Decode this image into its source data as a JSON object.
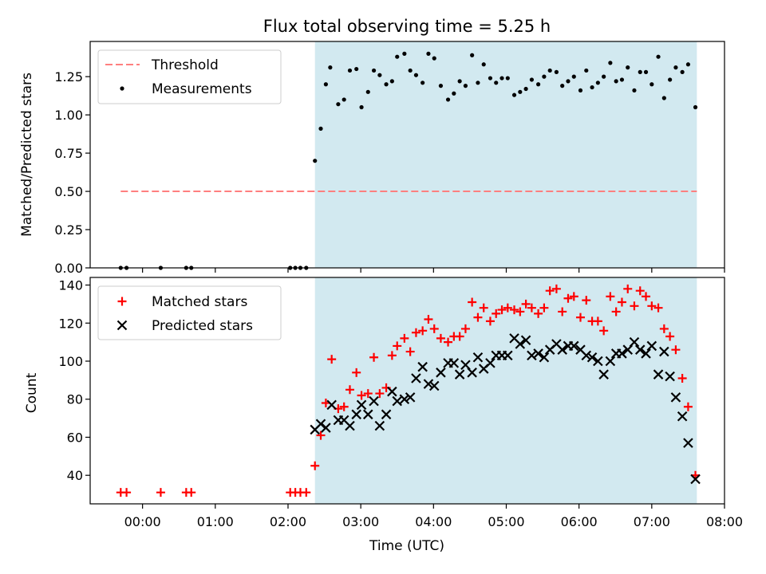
{
  "chart_data": [
    {
      "type": "scatter",
      "title": "Flux total observing time = 5.25 h",
      "xlabel": "",
      "ylabel": "Matched/Predicted stars",
      "xlim": [
        -0.72,
        8.0
      ],
      "ylim": [
        0.0,
        1.48
      ],
      "ytick_values": [
        0.0,
        0.25,
        0.5,
        0.75,
        1.0,
        1.25
      ],
      "ytick_labels": [
        "0.00",
        "0.25",
        "0.50",
        "0.75",
        "1.00",
        "1.25"
      ],
      "shaded_region": [
        2.37,
        7.62
      ],
      "shade_color": "#d2e9f0",
      "legend_position": "top-left",
      "threshold": {
        "name": "Threshold",
        "value": 0.5,
        "x": [
          -0.3,
          7.62
        ],
        "color": "#ff7f7f"
      },
      "series": [
        {
          "name": "Measurements",
          "marker": "dot",
          "color": "#000000",
          "points": [
            [
              -0.3,
              0.0
            ],
            [
              -0.22,
              0.0
            ],
            [
              0.25,
              0.0
            ],
            [
              0.6,
              0.0
            ],
            [
              0.67,
              0.0
            ],
            [
              2.03,
              0.0
            ],
            [
              2.1,
              0.0
            ],
            [
              2.17,
              0.0
            ],
            [
              2.25,
              0.0
            ],
            [
              2.37,
              0.7
            ],
            [
              2.45,
              0.91
            ],
            [
              2.52,
              1.2
            ],
            [
              2.58,
              1.31
            ],
            [
              2.69,
              1.07
            ],
            [
              2.77,
              1.1
            ],
            [
              2.85,
              1.29
            ],
            [
              2.94,
              1.3
            ],
            [
              3.01,
              1.05
            ],
            [
              3.1,
              1.15
            ],
            [
              3.18,
              1.29
            ],
            [
              3.26,
              1.26
            ],
            [
              3.35,
              1.2
            ],
            [
              3.43,
              1.22
            ],
            [
              3.5,
              1.38
            ],
            [
              3.6,
              1.4
            ],
            [
              3.68,
              1.29
            ],
            [
              3.76,
              1.26
            ],
            [
              3.85,
              1.21
            ],
            [
              3.93,
              1.4
            ],
            [
              4.01,
              1.37
            ],
            [
              4.1,
              1.19
            ],
            [
              4.2,
              1.1
            ],
            [
              4.28,
              1.14
            ],
            [
              4.36,
              1.22
            ],
            [
              4.44,
              1.19
            ],
            [
              4.53,
              1.39
            ],
            [
              4.61,
              1.21
            ],
            [
              4.69,
              1.33
            ],
            [
              4.78,
              1.24
            ],
            [
              4.86,
              1.21
            ],
            [
              4.94,
              1.24
            ],
            [
              5.02,
              1.24
            ],
            [
              5.11,
              1.13
            ],
            [
              5.19,
              1.15
            ],
            [
              5.27,
              1.17
            ],
            [
              5.35,
              1.23
            ],
            [
              5.44,
              1.2
            ],
            [
              5.52,
              1.25
            ],
            [
              5.6,
              1.29
            ],
            [
              5.69,
              1.28
            ],
            [
              5.77,
              1.19
            ],
            [
              5.85,
              1.22
            ],
            [
              5.93,
              1.25
            ],
            [
              6.02,
              1.16
            ],
            [
              6.1,
              1.29
            ],
            [
              6.18,
              1.18
            ],
            [
              6.26,
              1.21
            ],
            [
              6.34,
              1.25
            ],
            [
              6.43,
              1.34
            ],
            [
              6.51,
              1.22
            ],
            [
              6.59,
              1.23
            ],
            [
              6.67,
              1.31
            ],
            [
              6.76,
              1.16
            ],
            [
              6.84,
              1.28
            ],
            [
              6.92,
              1.28
            ],
            [
              7.0,
              1.2
            ],
            [
              7.09,
              1.38
            ],
            [
              7.17,
              1.11
            ],
            [
              7.25,
              1.23
            ],
            [
              7.33,
              1.31
            ],
            [
              7.42,
              1.28
            ],
            [
              7.5,
              1.33
            ],
            [
              7.6,
              1.05
            ]
          ]
        }
      ]
    },
    {
      "type": "scatter",
      "title": "",
      "xlabel": "Time (UTC)",
      "ylabel": "Count",
      "xlim": [
        -0.72,
        8.0
      ],
      "ylim": [
        25,
        144
      ],
      "ytick_values": [
        40,
        60,
        80,
        100,
        120,
        140
      ],
      "ytick_labels": [
        "40",
        "60",
        "80",
        "100",
        "120",
        "140"
      ],
      "xtick_values": [
        0,
        1,
        2,
        3,
        4,
        5,
        6,
        7,
        8
      ],
      "xtick_labels": [
        "00:00",
        "01:00",
        "02:00",
        "03:00",
        "04:00",
        "05:00",
        "06:00",
        "07:00",
        "08:00"
      ],
      "shaded_region": [
        2.37,
        7.62
      ],
      "shade_color": "#d2e9f0",
      "legend_position": "top-left",
      "series": [
        {
          "name": "Matched stars",
          "marker": "plus",
          "color": "#ff0000",
          "points": [
            [
              -0.3,
              31
            ],
            [
              -0.22,
              31
            ],
            [
              0.25,
              31
            ],
            [
              0.6,
              31
            ],
            [
              0.67,
              31
            ],
            [
              2.03,
              31
            ],
            [
              2.1,
              31
            ],
            [
              2.17,
              31
            ],
            [
              2.25,
              31
            ],
            [
              2.37,
              45
            ],
            [
              2.45,
              61
            ],
            [
              2.52,
              78
            ],
            [
              2.6,
              101
            ],
            [
              2.69,
              75
            ],
            [
              2.77,
              76
            ],
            [
              2.85,
              85
            ],
            [
              2.94,
              94
            ],
            [
              3.01,
              82
            ],
            [
              3.1,
              83
            ],
            [
              3.18,
              102
            ],
            [
              3.26,
              83
            ],
            [
              3.35,
              86
            ],
            [
              3.43,
              103
            ],
            [
              3.5,
              108
            ],
            [
              3.6,
              112
            ],
            [
              3.68,
              105
            ],
            [
              3.76,
              115
            ],
            [
              3.85,
              116
            ],
            [
              3.93,
              122
            ],
            [
              4.01,
              117
            ],
            [
              4.1,
              112
            ],
            [
              4.2,
              110
            ],
            [
              4.28,
              113
            ],
            [
              4.36,
              113
            ],
            [
              4.44,
              117
            ],
            [
              4.53,
              131
            ],
            [
              4.61,
              123
            ],
            [
              4.69,
              128
            ],
            [
              4.78,
              121
            ],
            [
              4.86,
              125
            ],
            [
              4.94,
              127
            ],
            [
              5.02,
              128
            ],
            [
              5.11,
              127
            ],
            [
              5.19,
              126
            ],
            [
              5.27,
              130
            ],
            [
              5.35,
              128
            ],
            [
              5.44,
              125
            ],
            [
              5.52,
              128
            ],
            [
              5.6,
              137
            ],
            [
              5.69,
              138
            ],
            [
              5.77,
              126
            ],
            [
              5.85,
              133
            ],
            [
              5.93,
              134
            ],
            [
              6.02,
              123
            ],
            [
              6.1,
              132
            ],
            [
              6.18,
              121
            ],
            [
              6.26,
              121
            ],
            [
              6.34,
              116
            ],
            [
              6.43,
              134
            ],
            [
              6.51,
              126
            ],
            [
              6.59,
              131
            ],
            [
              6.67,
              138
            ],
            [
              6.76,
              129
            ],
            [
              6.84,
              137
            ],
            [
              6.92,
              134
            ],
            [
              7.0,
              129
            ],
            [
              7.09,
              128
            ],
            [
              7.17,
              117
            ],
            [
              7.25,
              113
            ],
            [
              7.33,
              106
            ],
            [
              7.42,
              91
            ],
            [
              7.5,
              76
            ],
            [
              7.6,
              40
            ]
          ]
        },
        {
          "name": "Predicted stars",
          "marker": "cross",
          "color": "#000000",
          "points": [
            [
              2.37,
              64
            ],
            [
              2.45,
              67
            ],
            [
              2.52,
              65
            ],
            [
              2.6,
              77
            ],
            [
              2.69,
              69
            ],
            [
              2.77,
              69
            ],
            [
              2.85,
              66
            ],
            [
              2.94,
              72
            ],
            [
              3.01,
              77
            ],
            [
              3.1,
              72
            ],
            [
              3.18,
              79
            ],
            [
              3.26,
              66
            ],
            [
              3.35,
              72
            ],
            [
              3.43,
              84
            ],
            [
              3.5,
              79
            ],
            [
              3.6,
              80
            ],
            [
              3.68,
              81
            ],
            [
              3.76,
              91
            ],
            [
              3.85,
              97
            ],
            [
              3.93,
              88
            ],
            [
              4.01,
              87
            ],
            [
              4.1,
              94
            ],
            [
              4.2,
              99
            ],
            [
              4.28,
              99
            ],
            [
              4.36,
              93
            ],
            [
              4.44,
              98
            ],
            [
              4.53,
              94
            ],
            [
              4.61,
              102
            ],
            [
              4.69,
              96
            ],
            [
              4.78,
              99
            ],
            [
              4.86,
              103
            ],
            [
              4.94,
              103
            ],
            [
              5.02,
              103
            ],
            [
              5.11,
              112
            ],
            [
              5.19,
              109
            ],
            [
              5.27,
              111
            ],
            [
              5.35,
              103
            ],
            [
              5.44,
              104
            ],
            [
              5.52,
              102
            ],
            [
              5.6,
              106
            ],
            [
              5.69,
              109
            ],
            [
              5.77,
              106
            ],
            [
              5.85,
              108
            ],
            [
              5.93,
              108
            ],
            [
              6.02,
              106
            ],
            [
              6.1,
              103
            ],
            [
              6.18,
              102
            ],
            [
              6.26,
              100
            ],
            [
              6.34,
              93
            ],
            [
              6.43,
              100
            ],
            [
              6.51,
              104
            ],
            [
              6.59,
              104
            ],
            [
              6.67,
              106
            ],
            [
              6.76,
              110
            ],
            [
              6.84,
              106
            ],
            [
              6.92,
              104
            ],
            [
              7.0,
              108
            ],
            [
              7.09,
              93
            ],
            [
              7.17,
              105
            ],
            [
              7.25,
              92
            ],
            [
              7.33,
              81
            ],
            [
              7.42,
              71
            ],
            [
              7.5,
              57
            ],
            [
              7.6,
              38
            ]
          ]
        }
      ]
    }
  ]
}
